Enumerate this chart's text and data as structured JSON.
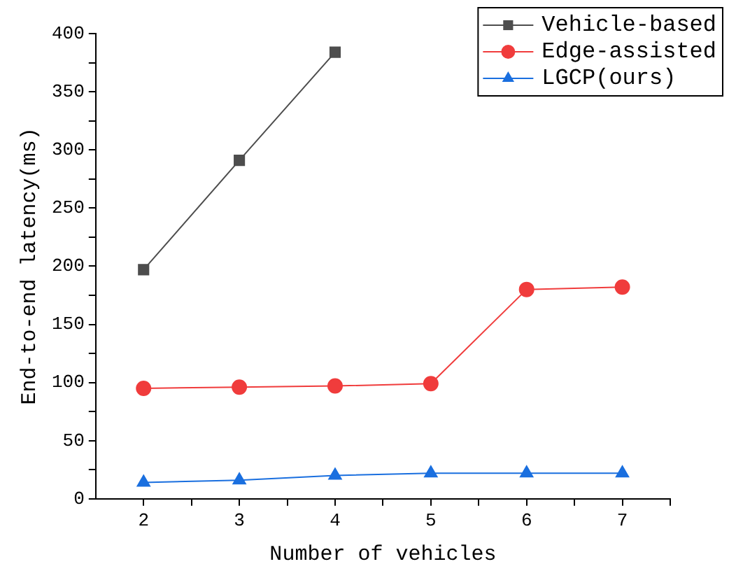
{
  "chart_data": {
    "type": "line",
    "xlabel": "Number of vehicles",
    "ylabel": "End-to-end latency(ms)",
    "x": [
      2,
      3,
      4,
      5,
      6,
      7
    ],
    "series": [
      {
        "name": "Vehicle-based",
        "color": "#4d4d4d",
        "marker": "square",
        "values": [
          197,
          291,
          384,
          null,
          null,
          null
        ]
      },
      {
        "name": "Edge-assisted",
        "color": "#f03c3c",
        "marker": "circle",
        "values": [
          95,
          96,
          97,
          99,
          180,
          182
        ]
      },
      {
        "name": "LGCP(ours)",
        "color": "#1a6fdf",
        "marker": "triangle",
        "values": [
          14,
          16,
          20,
          22,
          22,
          22
        ]
      }
    ],
    "xlim": [
      1.5,
      7.5
    ],
    "xticks": [
      2,
      {
        "value": 2.5,
        "label": null
      },
      3,
      {
        "value": 3.5,
        "label": null
      },
      4,
      {
        "value": 4.5,
        "label": null
      },
      5,
      {
        "value": 5.5,
        "label": null
      },
      6,
      {
        "value": 6.5,
        "label": null
      },
      7,
      {
        "value": 7.5,
        "label": null
      }
    ],
    "ylim": [
      0,
      400
    ],
    "yticks": [
      0,
      {
        "value": 25,
        "label": null
      },
      50,
      {
        "value": 75,
        "label": null
      },
      100,
      {
        "value": 125,
        "label": null
      },
      150,
      {
        "value": 175,
        "label": null
      },
      200,
      {
        "value": 225,
        "label": null
      },
      250,
      {
        "value": 275,
        "label": null
      },
      300,
      {
        "value": 325,
        "label": null
      },
      350,
      {
        "value": 375,
        "label": null
      },
      400
    ],
    "grid": false,
    "legend": "top right",
    "line_style": "solid"
  }
}
